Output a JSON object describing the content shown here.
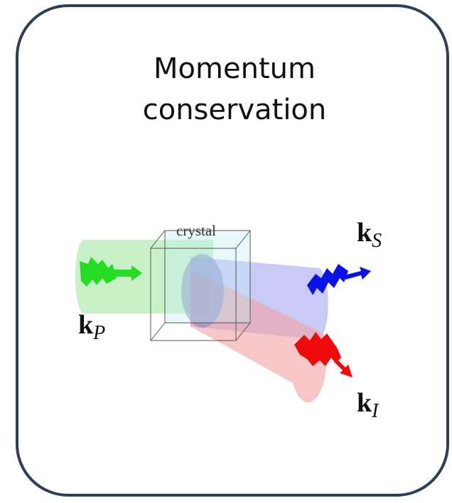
{
  "header": {
    "title": "Momentum conservation"
  },
  "diagram": {
    "crystal_label": "crystal",
    "beams": [
      {
        "symbol": "k",
        "subscript": "S"
      },
      {
        "symbol": "k",
        "subscript": "P"
      },
      {
        "symbol": "k",
        "subscript": "I"
      }
    ]
  }
}
